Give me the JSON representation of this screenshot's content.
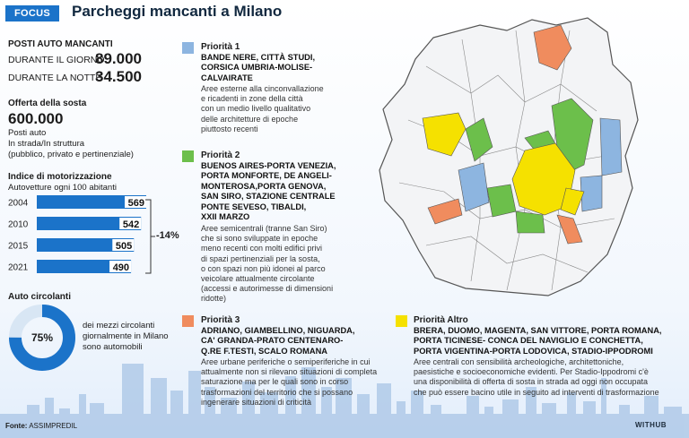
{
  "header": {
    "badge": "FOCUS",
    "title": "Parcheggi mancanti a Milano"
  },
  "missing_spaces": {
    "heading": "POSTI AUTO MANCANTI",
    "day_label": "DURANTE IL GIORNO",
    "day_value": "89.000",
    "night_label": "DURANTE LA NOTTE",
    "night_value": "34.500"
  },
  "supply": {
    "heading": "Offerta della sosta",
    "value": "600.000",
    "line1": "Posti auto",
    "line2": "In strada/In struttura",
    "line3": "(pubblico, privato e pertinenziale)"
  },
  "motorization": {
    "heading": "Indice di motorizzazione",
    "subheading": "Autovetture ogni 100 abitanti",
    "change_label": "-14%"
  },
  "chart_data": {
    "type": "bar",
    "orientation": "horizontal",
    "title": "Indice di motorizzazione",
    "subtitle": "Autovetture ogni 100 abitanti",
    "categories": [
      "2004",
      "2010",
      "2015",
      "2021"
    ],
    "values": [
      569,
      542,
      505,
      490
    ],
    "xlim": [
      0,
      569
    ],
    "color": "#1b73c9"
  },
  "circulating": {
    "heading": "Auto circolanti",
    "percent": 75,
    "percent_label": "75%",
    "line1": "dei mezzi circolanti",
    "line2": "giornalmente in Milano",
    "line3": "sono automobili",
    "color_main": "#1b73c9",
    "color_rest": "#d8e6f4"
  },
  "priorities": [
    {
      "title": "Priorità 1",
      "color": "#8db5e0",
      "areas": [
        "BANDE NERE, CITTÀ STUDI,",
        "CORSICA UMBRIA-MOLISE-",
        "CALVAIRATE"
      ],
      "desc": [
        "Aree esterne alla cinconvallazione",
        "e ricadenti in zone della città",
        "con un medio livello qualitativo",
        "delle architetture di epoche",
        "piuttosto recenti"
      ]
    },
    {
      "title": "Priorità 2",
      "color": "#6cbf4b",
      "areas": [
        "BUENOS AIRES-PORTA VENEZIA,",
        "PORTA MONFORTE, DE ANGELI-",
        "MONTEROSA,PORTA GENOVA,",
        "SAN SIRO, STAZIONE CENTRALE",
        "PONTE SEVESO, TIBALDI,",
        "XXII MARZO"
      ],
      "desc": [
        "Aree semicentrali (tranne San Siro)",
        "che si sono sviluppate in epoche",
        "meno recenti con molti edifici privi",
        "di spazi pertinenziali per la sosta,",
        "o con spazi non più idonei al parco",
        "veicolare attualmente circolante",
        "(accessi e autorimesse di dimensioni",
        "ridotte)"
      ]
    },
    {
      "title": "Priorità 3",
      "color": "#f08c5e",
      "areas": [
        "ADRIANO, GIAMBELLINO, NIGUARDA,",
        "CA' GRANDA-PRATO CENTENARO-",
        "Q.RE F.TESTI, SCALO ROMANA"
      ],
      "desc": [
        "Aree urbane periferiche o semiperiferiche in cui",
        "attualmente non si rilevano situazioni di completa",
        "saturazione ma per le quali sono in corso",
        "trasformazioni del territorio che si possano",
        "ingenerare situazioni di criticità"
      ]
    },
    {
      "title": "Priorità Altro",
      "color": "#f5e100",
      "areas": [
        "BRERA, DUOMO, MAGENTA, SAN VITTORE, PORTA ROMANA,",
        "PORTA TICINESE- CONCA DEL NAVIGLIO E CONCHETTA,",
        "PORTA VIGENTINA-PORTA LODOVICA, STADIO-IPPODROMI"
      ],
      "desc": [
        "Aree centrali con sensibilità archeologiche, architettoniche,",
        "paesistiche e socioeconomiche evidenti. Per Stadio-Ippodromi c'è",
        "una disponibilità di offerta di sosta in strada ad oggi non occupata",
        "che può essere bacino utile in seguito ad interventi di trasformazione"
      ]
    }
  ],
  "footer": {
    "source_label": "Fonte:",
    "source_value": "ASSIMPREDIL",
    "brand": "WITHUB"
  }
}
